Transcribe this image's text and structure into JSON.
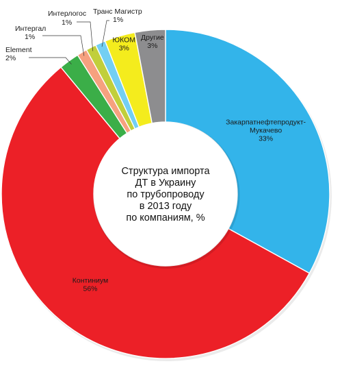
{
  "chart_data": {
    "type": "pie",
    "variant": "donut",
    "center_title_lines": [
      "Структура импорта",
      "ДТ в Украину",
      "по трубопроводу",
      "в 2013 году",
      "по компаниям, %"
    ],
    "slices": [
      {
        "name": "Закарпатнефтепродукт-",
        "name_cont": "Мукачево",
        "value": 33,
        "value_label": "33%",
        "color": "#33b4ea"
      },
      {
        "name": "Континиум",
        "value": 56,
        "value_label": "56%",
        "color": "#ec2027"
      },
      {
        "name": "Element",
        "value": 2,
        "value_label": "2%",
        "color": "#3bae48"
      },
      {
        "name": "Интергал",
        "value": 1,
        "value_label": "1%",
        "color": "#f6a17f"
      },
      {
        "name": "Интерлогос",
        "value": 1,
        "value_label": "1%",
        "color": "#c1cf3b"
      },
      {
        "name": "Транс Магистр",
        "value": 1,
        "value_label": "1%",
        "color": "#73cff3"
      },
      {
        "name": "ЮКОМ",
        "value": 3,
        "value_label": "3%",
        "color": "#f4ec1d"
      },
      {
        "name": "Другие",
        "value": 3,
        "value_label": "3%",
        "color": "#8d8d8f"
      }
    ],
    "legend": "none",
    "labels": "outside-and-inside-with-leaders"
  }
}
